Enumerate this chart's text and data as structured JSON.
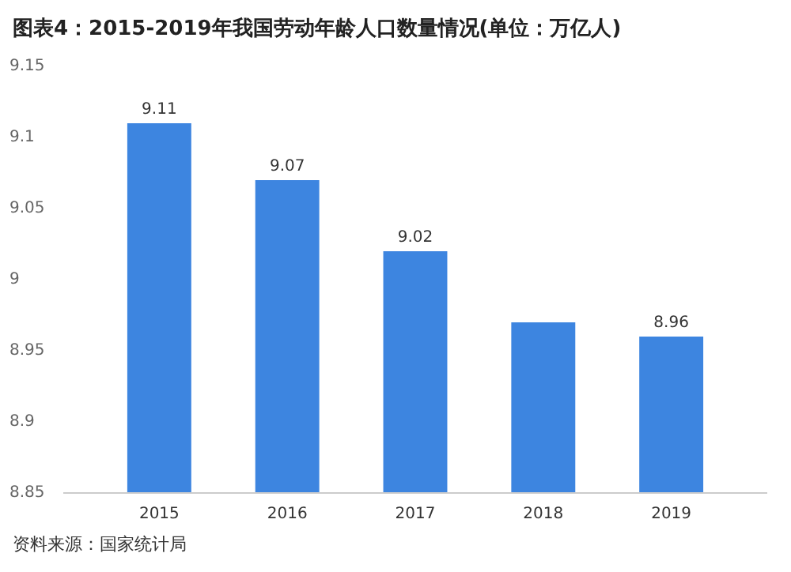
{
  "chart_data": {
    "type": "bar",
    "title": "图表4：2015-2019年我国劳动年龄人口数量情况(单位：万亿人)",
    "categories": [
      "2015",
      "2016",
      "2017",
      "2018",
      "2019"
    ],
    "values": [
      9.11,
      9.07,
      9.02,
      8.97,
      8.96
    ],
    "value_labels": [
      "9.11",
      "9.07",
      "9.02",
      null,
      "8.96"
    ],
    "color": "#3d85e0",
    "ylim": [
      8.85,
      9.15
    ],
    "yticks": [
      8.85,
      8.9,
      8.95,
      9,
      9.05,
      9.1,
      9.15
    ],
    "grid": false,
    "annotations": [
      "资料来源：国家统计局"
    ]
  }
}
